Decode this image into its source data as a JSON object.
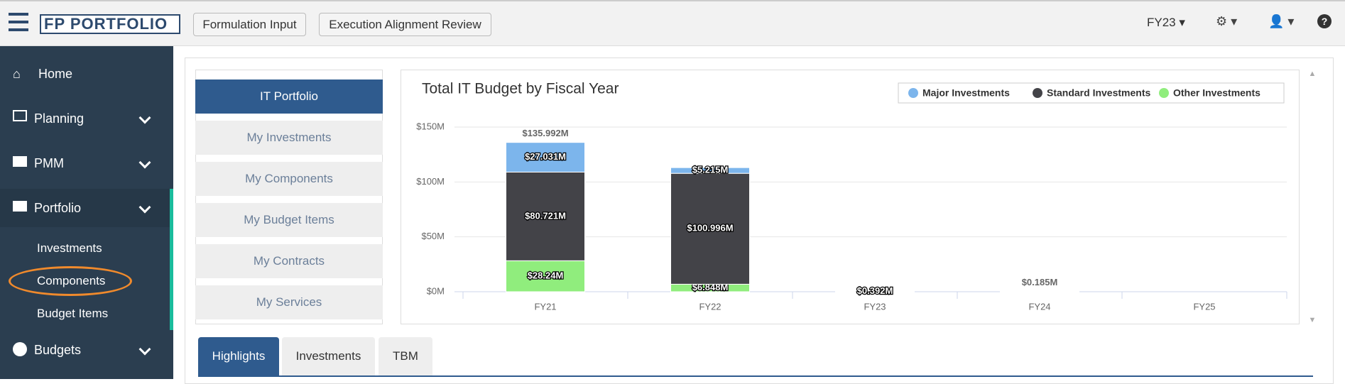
{
  "header": {
    "logo": "FP PORTFOLIO",
    "buttons": [
      "Formulation Input",
      "Execution Alignment Review"
    ],
    "fiscal_year": "FY23"
  },
  "sidebar": {
    "items": [
      "Home",
      "Planning",
      "PMM",
      "Portfolio"
    ],
    "sub_items": [
      "Investments",
      "Components",
      "Budget Items"
    ],
    "last_item": "Budgets"
  },
  "portfolio_menu": {
    "items": [
      "IT Portfolio",
      "My Investments",
      "My Components",
      "My Budget Items",
      "My Contracts",
      "My Services"
    ]
  },
  "tabs": [
    "Highlights",
    "Investments",
    "TBM"
  ],
  "chart_data": {
    "type": "stacked_bar",
    "title": "Total IT Budget by Fiscal Year",
    "categories": [
      "FY21",
      "FY22",
      "FY23",
      "FY24",
      "FY25"
    ],
    "series": [
      {
        "name": "Major Investments",
        "color": "#7cb5ec",
        "values": [
          27.031,
          5.215,
          null,
          null,
          null
        ],
        "value_labels": [
          "$27.031M",
          "$5.215M",
          null,
          null,
          null
        ]
      },
      {
        "name": "Standard Investments",
        "color": "#434348",
        "values": [
          80.721,
          100.996,
          0.392,
          0.185,
          null
        ],
        "value_labels": [
          "$80.721M",
          "$100.996M",
          "$0.392M",
          null,
          null
        ]
      },
      {
        "name": "Other Investments",
        "color": "#90ed7d",
        "values": [
          28.24,
          6.848,
          null,
          null,
          null
        ],
        "value_labels": [
          "$28.24M",
          "$6.848M",
          null,
          null,
          null
        ]
      }
    ],
    "stack_totals": {
      "values": [
        135.992,
        null,
        null,
        0.185,
        null
      ],
      "value_labels": [
        "$135.992M",
        null,
        null,
        "$0.185M",
        null
      ]
    },
    "ylim": [
      0,
      150
    ],
    "yticks": [
      {
        "value": 0,
        "label": "$0M"
      },
      {
        "value": 50,
        "label": "$50M"
      },
      {
        "value": 100,
        "label": "$100M"
      },
      {
        "value": 150,
        "label": "$150M"
      }
    ],
    "grid": true,
    "legend": "top-right"
  }
}
